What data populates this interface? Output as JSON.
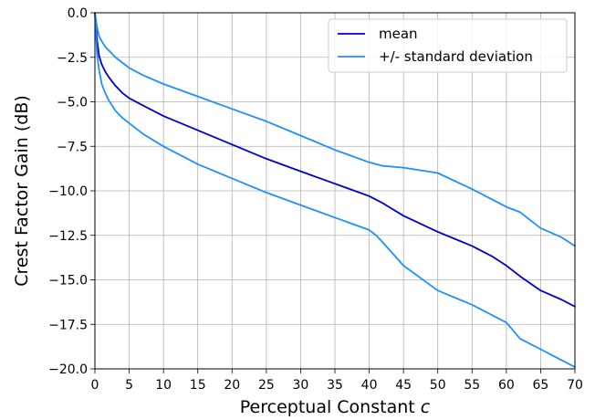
{
  "chart_data": {
    "type": "line",
    "title": "",
    "xlabel": "Perceptual Constant ",
    "xlabel_italic": "c",
    "ylabel": "Crest Factor Gain (dB)",
    "xlim": [
      0,
      70
    ],
    "ylim": [
      -20,
      0
    ],
    "xticks": [
      0,
      5,
      10,
      15,
      20,
      25,
      30,
      35,
      40,
      45,
      50,
      55,
      60,
      65,
      70
    ],
    "xtick_labels": [
      "0",
      "5",
      "10",
      "15",
      "20",
      "25",
      "30",
      "35",
      "40",
      "45",
      "50",
      "55",
      "60",
      "65",
      "70"
    ],
    "yticks": [
      0,
      -2.5,
      -5,
      -7.5,
      -10,
      -12.5,
      -15,
      -17.5,
      -20
    ],
    "ytick_labels": [
      "0.0",
      "−2.5",
      "−5.0",
      "−7.5",
      "−10.0",
      "−12.5",
      "−15.0",
      "−17.5",
      "−20.0"
    ],
    "grid": true,
    "legend_position": "top-right",
    "legend": [
      {
        "label": "mean",
        "color": "#0000cd"
      },
      {
        "label": "+/- standard deviation",
        "color": "#1e90ff"
      }
    ],
    "series": [
      {
        "name": "mean",
        "color": "#0000cd",
        "x": [
          0,
          0.3,
          0.6,
          1,
          1.5,
          2,
          3,
          4,
          5,
          7,
          10,
          15,
          20,
          25,
          30,
          35,
          40,
          42,
          45,
          50,
          55,
          58,
          60,
          62,
          65,
          68,
          70
        ],
        "y": [
          0,
          -1.5,
          -2.4,
          -2.9,
          -3.3,
          -3.6,
          -4.1,
          -4.5,
          -4.8,
          -5.2,
          -5.8,
          -6.6,
          -7.4,
          -8.2,
          -8.9,
          -9.6,
          -10.3,
          -10.7,
          -11.4,
          -12.3,
          -13.1,
          -13.7,
          -14.2,
          -14.8,
          -15.6,
          -16.1,
          -16.5
        ]
      },
      {
        "name": "+/- standard deviation",
        "color": "#1e90ff",
        "x": [
          0,
          0.3,
          0.6,
          1,
          1.5,
          2,
          3,
          4,
          5,
          7,
          10,
          15,
          20,
          25,
          30,
          35,
          40,
          42,
          45,
          50,
          55,
          60,
          62,
          65,
          68,
          70
        ],
        "y": [
          0,
          -0.8,
          -1.3,
          -1.6,
          -1.9,
          -2.1,
          -2.5,
          -2.8,
          -3.1,
          -3.5,
          -4.0,
          -4.7,
          -5.4,
          -6.1,
          -6.9,
          -7.7,
          -8.4,
          -8.6,
          -8.7,
          -9.0,
          -9.9,
          -10.9,
          -11.2,
          -12.1,
          -12.6,
          -13.1
        ]
      },
      {
        "name": "",
        "color": "#1e90ff",
        "x": [
          0,
          0.3,
          0.6,
          1,
          1.5,
          2,
          3,
          4,
          5,
          7,
          10,
          15,
          20,
          25,
          30,
          35,
          40,
          41,
          42,
          45,
          50,
          55,
          60,
          62,
          65,
          68,
          70
        ],
        "y": [
          0,
          -2.3,
          -3.2,
          -4.0,
          -4.5,
          -4.9,
          -5.5,
          -5.9,
          -6.2,
          -6.8,
          -7.5,
          -8.5,
          -9.3,
          -10.1,
          -10.8,
          -11.5,
          -12.2,
          -12.5,
          -12.9,
          -14.2,
          -15.6,
          -16.4,
          -17.4,
          -18.3,
          -18.9,
          -19.5,
          -19.9
        ]
      }
    ]
  }
}
